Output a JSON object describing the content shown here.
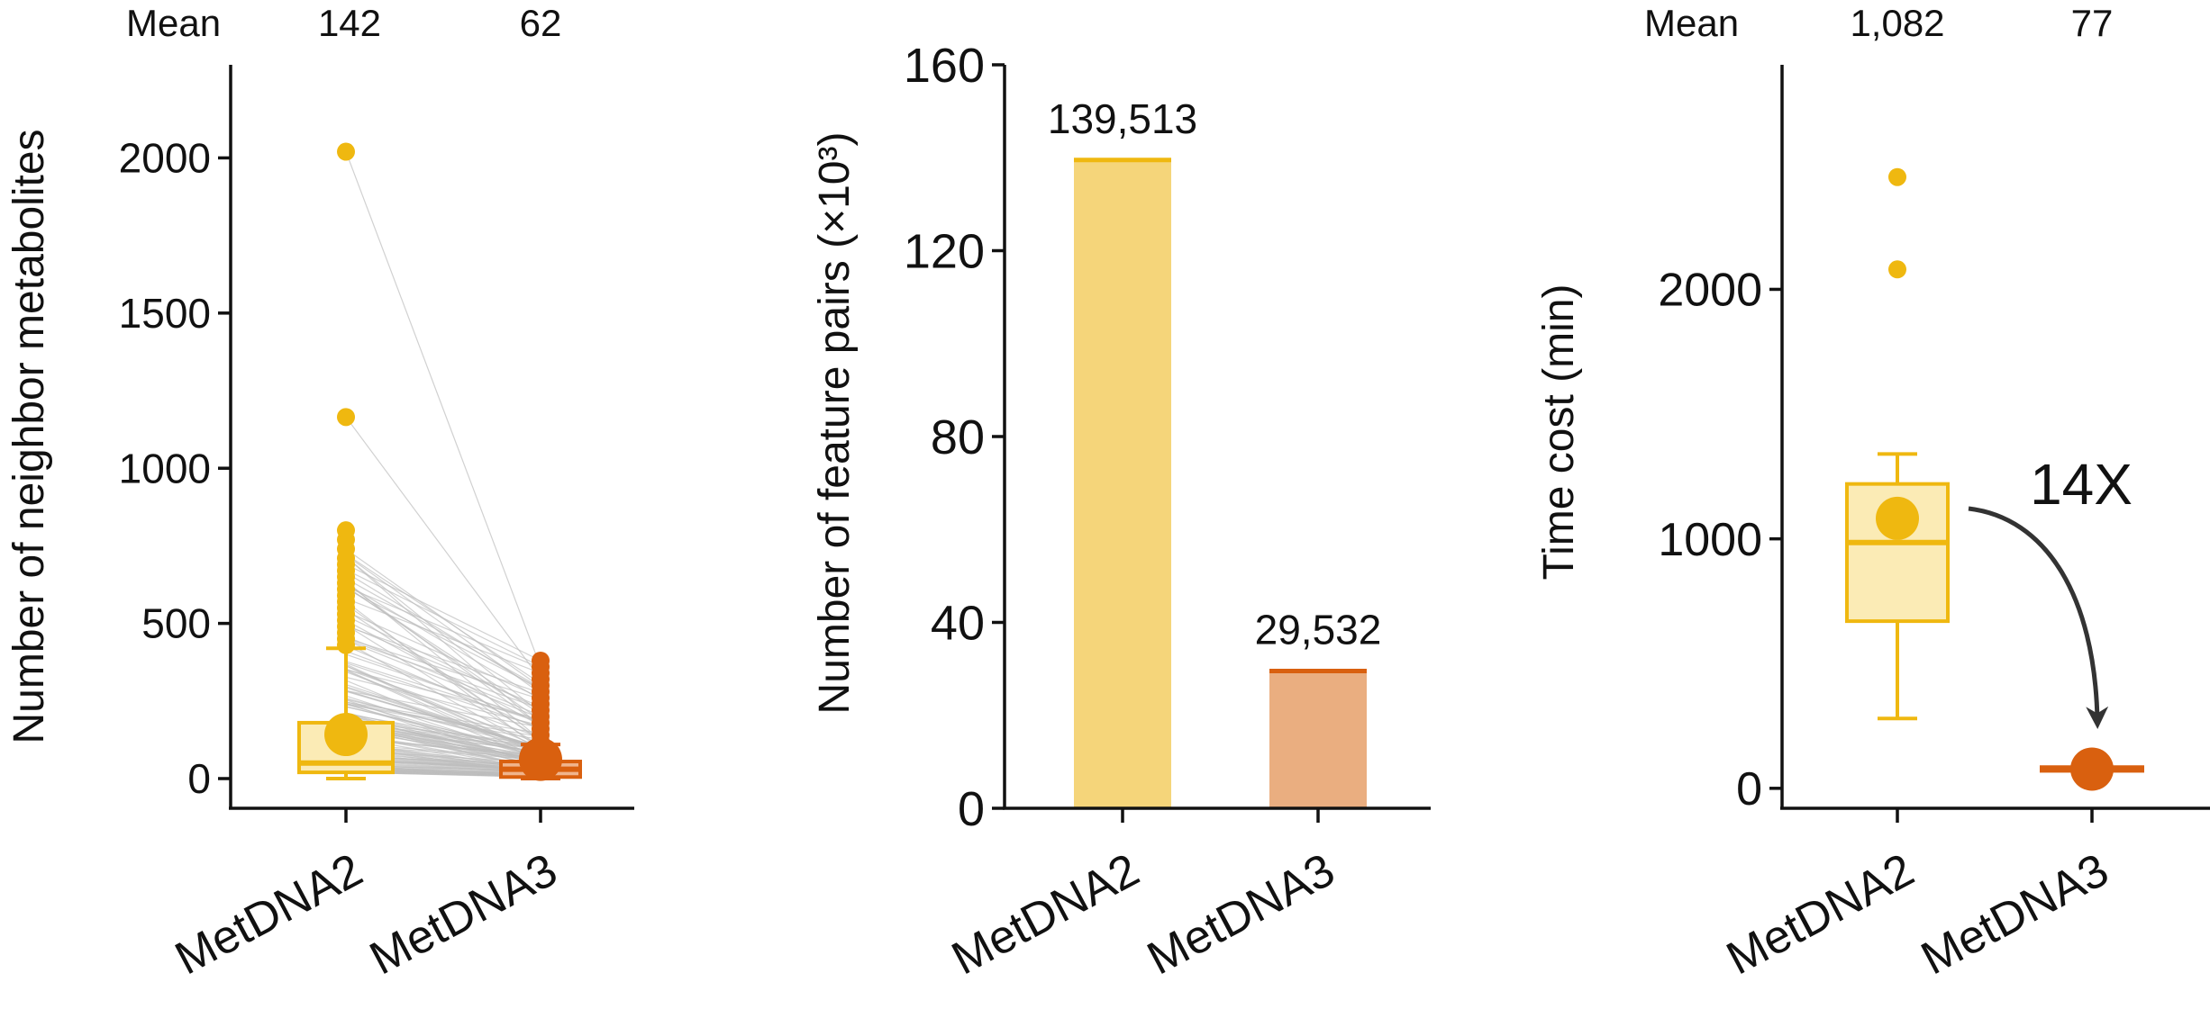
{
  "colors": {
    "metdna2": "#EFB810",
    "metdna2_fill": "#F5D57A",
    "metdna2_box_fill": "#FBEBB5",
    "metdna3": "#D9600F",
    "metdna3_fill": "#EAAE80",
    "metdna3_box_fill": "#F0B48C",
    "pair_line": "#BDBDBD",
    "axis": "#111111",
    "arrow": "#333333"
  },
  "chart_data": [
    {
      "type": "box",
      "panel": "neighbor-metabolites",
      "ylabel": "Number of neighbor metabolites",
      "ylim": [
        0,
        2300
      ],
      "yticks": [
        0,
        500,
        1000,
        1500,
        2000
      ],
      "categories": [
        "MetDNA2",
        "MetDNA3"
      ],
      "mean_header": {
        "label": "Mean",
        "values": [
          "142",
          "62"
        ]
      },
      "paired_lines": true,
      "series": [
        {
          "name": "MetDNA2",
          "q1": 20,
          "median": 50,
          "q3": 180,
          "whisker_low": 0,
          "whisker_high": 420,
          "mean": 142,
          "outliers": [
            2020,
            1165,
            800,
            770,
            740,
            710,
            690,
            670,
            650,
            630,
            610,
            590,
            570,
            550,
            530,
            510,
            490,
            470,
            450,
            430
          ]
        },
        {
          "name": "MetDNA3",
          "q1": 5,
          "median": 30,
          "q3": 55,
          "whisker_low": 0,
          "whisker_high": 110,
          "mean": 62,
          "outliers": [
            380,
            360,
            340,
            320,
            300,
            280,
            260,
            240,
            220,
            200,
            180,
            160,
            140,
            120
          ]
        }
      ]
    },
    {
      "type": "bar",
      "panel": "feature-pairs",
      "ylabel": "Number of feature pairs (×10³)",
      "ylim": [
        0,
        160
      ],
      "yticks": [
        0,
        40,
        80,
        120,
        160
      ],
      "categories": [
        "MetDNA2",
        "MetDNA3"
      ],
      "values": [
        139.513,
        29.532
      ],
      "data_labels": [
        "139,513",
        "29,532"
      ]
    },
    {
      "type": "box",
      "panel": "time-cost",
      "ylabel": "Time cost (min)",
      "ylim": [
        -80,
        2900
      ],
      "yticks": [
        0,
        1000,
        2000
      ],
      "categories": [
        "MetDNA2",
        "MetDNA3"
      ],
      "mean_header": {
        "label": "Mean",
        "values": [
          "1,082",
          "77"
        ]
      },
      "annotation": "14X",
      "series": [
        {
          "name": "MetDNA2",
          "q1": 670,
          "median": 985,
          "q3": 1220,
          "whisker_low": 280,
          "whisker_high": 1340,
          "mean": 1082,
          "outliers": [
            2450,
            2080
          ]
        },
        {
          "name": "MetDNA3",
          "q1": 70,
          "median": 77,
          "q3": 85,
          "whisker_low": 65,
          "whisker_high": 90,
          "mean": 77,
          "outliers": []
        }
      ]
    }
  ]
}
